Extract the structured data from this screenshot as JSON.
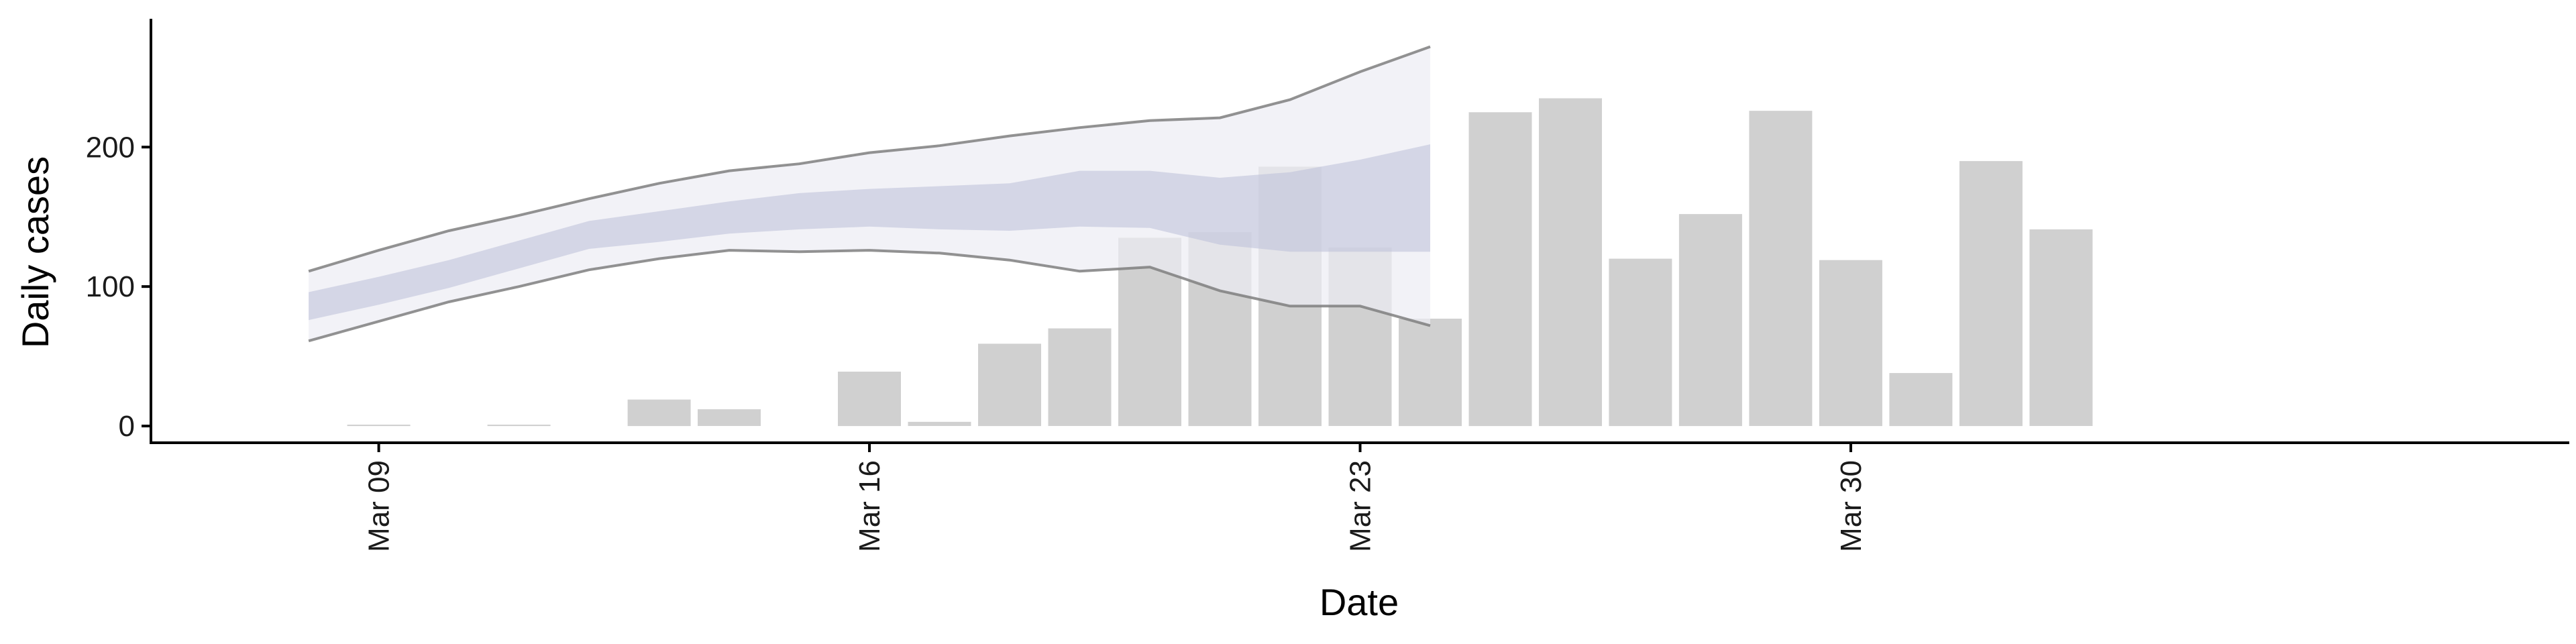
{
  "chart_data": {
    "type": "bar",
    "xlabel": "Date",
    "ylabel": "Daily cases",
    "grid": false,
    "ylim": [
      -12,
      292
    ],
    "xlim": [
      "2020-03-05T18:00",
      "2020-04-09T06:00"
    ],
    "x_ticks": [
      {
        "date": "2020-03-09",
        "label": "Mar 09"
      },
      {
        "date": "2020-03-16",
        "label": "Mar 16"
      },
      {
        "date": "2020-03-23",
        "label": "Mar 23"
      },
      {
        "date": "2020-03-30",
        "label": "Mar 30"
      }
    ],
    "y_ticks": [
      0,
      100,
      200
    ],
    "colors": {
      "bars": "#cccccc",
      "outer_band": "#ececf4",
      "inner_band": "#bfc3da",
      "band_lines": "#7f7f7f",
      "axis": "#000000"
    },
    "bars": [
      {
        "date": "2020-03-09",
        "value": 1
      },
      {
        "date": "2020-03-11",
        "value": 1
      },
      {
        "date": "2020-03-13",
        "value": 19
      },
      {
        "date": "2020-03-14",
        "value": 12
      },
      {
        "date": "2020-03-16",
        "value": 39
      },
      {
        "date": "2020-03-17",
        "value": 3
      },
      {
        "date": "2020-03-18",
        "value": 59
      },
      {
        "date": "2020-03-19",
        "value": 70
      },
      {
        "date": "2020-03-20",
        "value": 135
      },
      {
        "date": "2020-03-21",
        "value": 139
      },
      {
        "date": "2020-03-22",
        "value": 186
      },
      {
        "date": "2020-03-23",
        "value": 128
      },
      {
        "date": "2020-03-24",
        "value": 77
      },
      {
        "date": "2020-03-25",
        "value": 225
      },
      {
        "date": "2020-03-26",
        "value": 235
      },
      {
        "date": "2020-03-27",
        "value": 120
      },
      {
        "date": "2020-03-28",
        "value": 152
      },
      {
        "date": "2020-03-29",
        "value": 226
      },
      {
        "date": "2020-03-30",
        "value": 119
      },
      {
        "date": "2020-03-31",
        "value": 38
      },
      {
        "date": "2020-04-01",
        "value": 190
      },
      {
        "date": "2020-04-02",
        "value": 141
      }
    ],
    "forecast_band": [
      {
        "date": "2020-03-08",
        "lower90": 61,
        "lower50": 76,
        "upper50": 96,
        "upper90": 111
      },
      {
        "date": "2020-03-09",
        "lower90": 75,
        "lower50": 87,
        "upper50": 107,
        "upper90": 126
      },
      {
        "date": "2020-03-10",
        "lower90": 89,
        "lower50": 99,
        "upper50": 119,
        "upper90": 140
      },
      {
        "date": "2020-03-11",
        "lower90": 100,
        "lower50": 113,
        "upper50": 133,
        "upper90": 151
      },
      {
        "date": "2020-03-12",
        "lower90": 112,
        "lower50": 127,
        "upper50": 147,
        "upper90": 163
      },
      {
        "date": "2020-03-13",
        "lower90": 120,
        "lower50": 132,
        "upper50": 154,
        "upper90": 174
      },
      {
        "date": "2020-03-14",
        "lower90": 126,
        "lower50": 138,
        "upper50": 161,
        "upper90": 183
      },
      {
        "date": "2020-03-15",
        "lower90": 125,
        "lower50": 141,
        "upper50": 167,
        "upper90": 188
      },
      {
        "date": "2020-03-16",
        "lower90": 126,
        "lower50": 143,
        "upper50": 170,
        "upper90": 196
      },
      {
        "date": "2020-03-17",
        "lower90": 124,
        "lower50": 141,
        "upper50": 172,
        "upper90": 201
      },
      {
        "date": "2020-03-18",
        "lower90": 119,
        "lower50": 140,
        "upper50": 174,
        "upper90": 208
      },
      {
        "date": "2020-03-19",
        "lower90": 111,
        "lower50": 143,
        "upper50": 183,
        "upper90": 214
      },
      {
        "date": "2020-03-20",
        "lower90": 114,
        "lower50": 142,
        "upper50": 183,
        "upper90": 219
      },
      {
        "date": "2020-03-21",
        "lower90": 97,
        "lower50": 130,
        "upper50": 178,
        "upper90": 221
      },
      {
        "date": "2020-03-22",
        "lower90": 86,
        "lower50": 125,
        "upper50": 182,
        "upper90": 234
      },
      {
        "date": "2020-03-23",
        "lower90": 86,
        "lower50": 125,
        "upper50": 191,
        "upper90": 254
      },
      {
        "date": "2020-03-24",
        "lower90": 72,
        "lower50": 125,
        "upper50": 202,
        "upper90": 272
      }
    ]
  }
}
